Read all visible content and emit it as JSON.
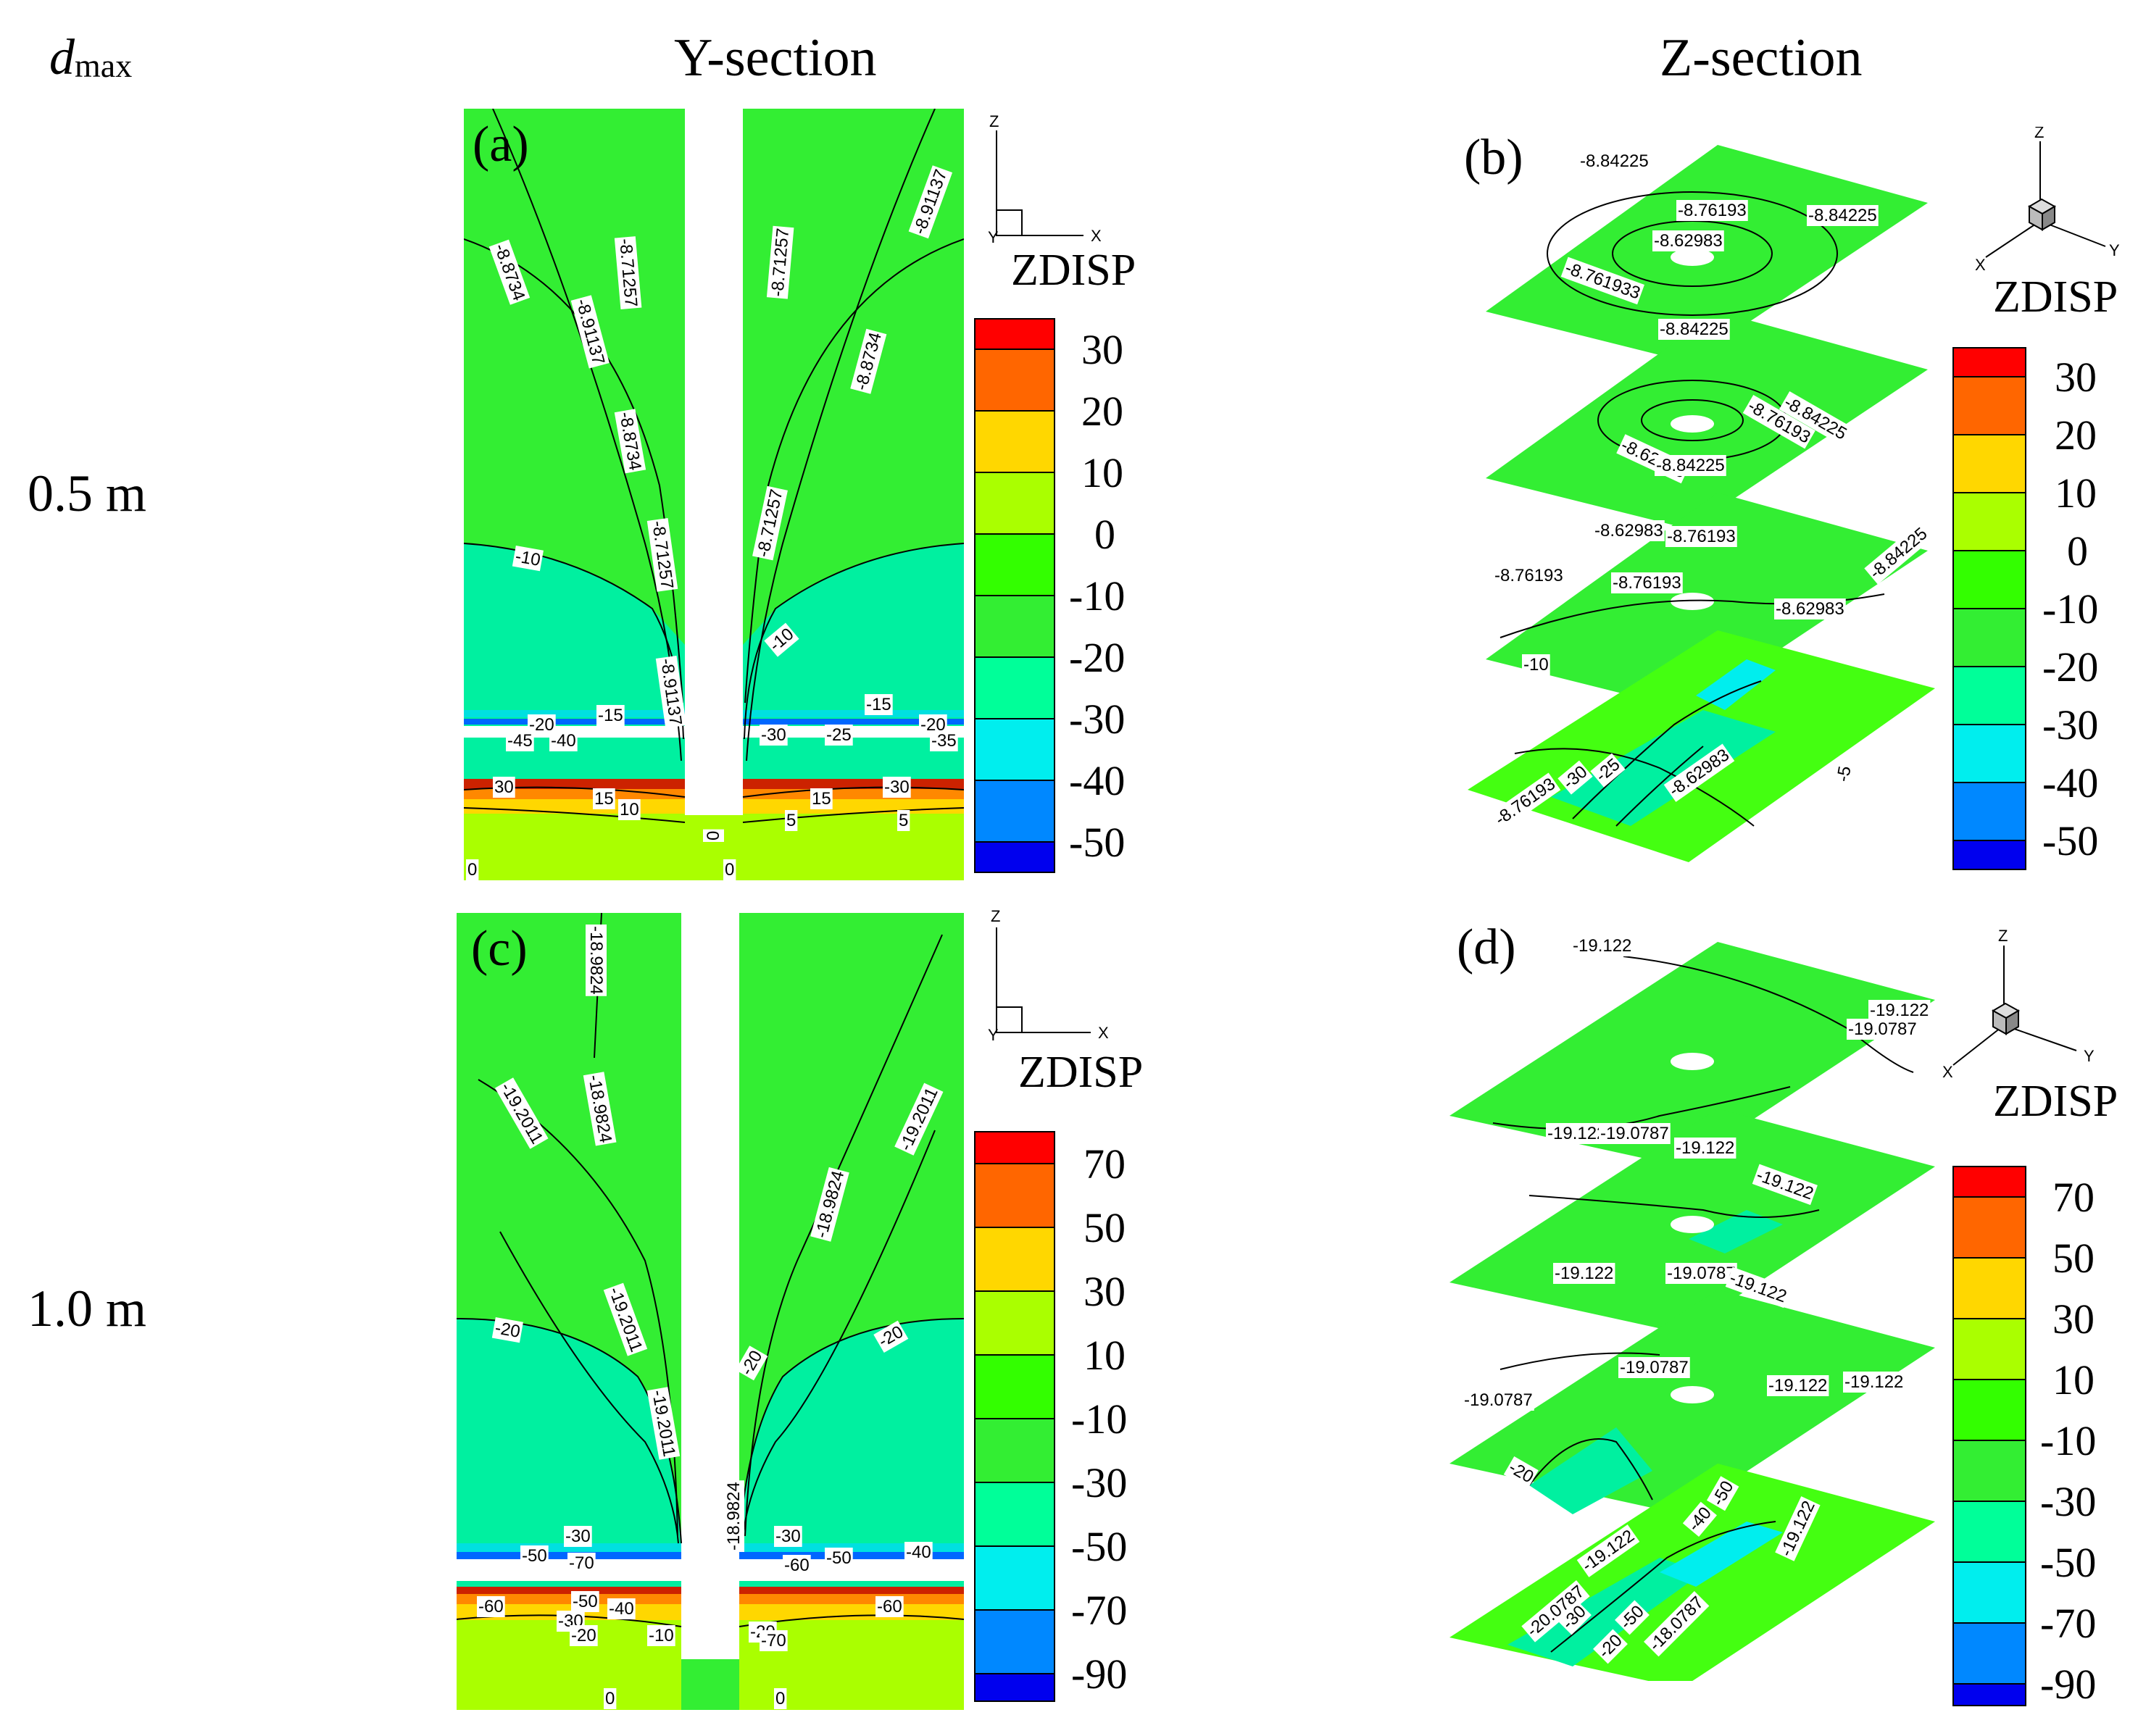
{
  "header": {
    "dmax_var": "d",
    "dmax_sub": "max",
    "col_y": "Y-section",
    "col_z": "Z-section"
  },
  "rows": [
    {
      "label": "0.5 m"
    },
    {
      "label": "1.0 m"
    }
  ],
  "panels": {
    "a": {
      "label": "(a)",
      "contours": [
        "-8.8734",
        "-8.71257",
        "-8.91137",
        "-8.8734",
        "-8.71257",
        "-8.71257",
        "-8.8734",
        "-8.91137",
        "-8.71257",
        "-10",
        "-10",
        "-15",
        "-15",
        "-20",
        "-20",
        "-25",
        "-30",
        "-35",
        "-40",
        "-45",
        "30",
        "15",
        "10",
        "5",
        "0",
        "0",
        "0",
        "-30",
        "15",
        "5",
        "-8.91137"
      ]
    },
    "b": {
      "label": "(b)",
      "contours": [
        "-8.84225",
        "-8.76193",
        "-8.84225",
        "-8.62983",
        "-8.761933",
        "-8.84225",
        "-8.76193",
        "-8.84225",
        "-8.62983",
        "-8.84225",
        "-8.62983",
        "-8.76193",
        "-8.76193",
        "-8.76193",
        "-8.62983",
        "-8.84225",
        "-10",
        "-8.76193",
        "-25",
        "-30",
        "-5",
        "-8.62983"
      ]
    },
    "c": {
      "label": "(c)",
      "contours": [
        "-18.9824",
        "-19.2011",
        "-19.2011",
        "-18.9824",
        "-18.9824",
        "-19.2011",
        "-20",
        "-20",
        "-19.2011",
        "-30",
        "-50",
        "-70",
        "-60",
        "-50",
        "-40",
        "-30",
        "-20",
        "-10",
        "0",
        "-40",
        "-60",
        "-50",
        "-30",
        "-20",
        "-60",
        "-70",
        "0",
        "-18.9824",
        "-20"
      ]
    },
    "d": {
      "label": "(d)",
      "contours": [
        "-19.122",
        "-19.122",
        "-19.0787",
        "-19.122",
        "-19.0787",
        "-19.122",
        "-19.122",
        "-19.122",
        "-19.0787",
        "-19.122",
        "-19.0787",
        "-19.122",
        "-19.0787",
        "-19.122",
        "-20",
        "-50",
        "-40",
        "-19.122",
        "-20.0787",
        "-30",
        "-19.122",
        "-50",
        "-20",
        "-18.0787"
      ]
    }
  },
  "legend_top": {
    "title": "ZDISP",
    "ticks": [
      "30",
      "20",
      "10",
      "0",
      "-10",
      "-20",
      "-30",
      "-40",
      "-50"
    ]
  },
  "legend_bottom": {
    "title": "ZDISP",
    "ticks": [
      "70",
      "50",
      "30",
      "10",
      "-10",
      "-30",
      "-50",
      "-70",
      "-90"
    ]
  },
  "axes_2d": {
    "z": "Z",
    "x": "X",
    "y": "Y"
  },
  "axes_3d": {
    "z": "Z",
    "x": "X",
    "y": "Y"
  },
  "colors": {
    "band_colors": [
      "#ff0000",
      "#ff6600",
      "#ffd700",
      "#aaff00",
      "#33ff00",
      "#33ee33",
      "#00ff99",
      "#00eeee",
      "#0088ff",
      "#0000ee"
    ],
    "main_green": "#33ee33",
    "bright_green": "#44ff11",
    "teal": "#00f0a0"
  }
}
